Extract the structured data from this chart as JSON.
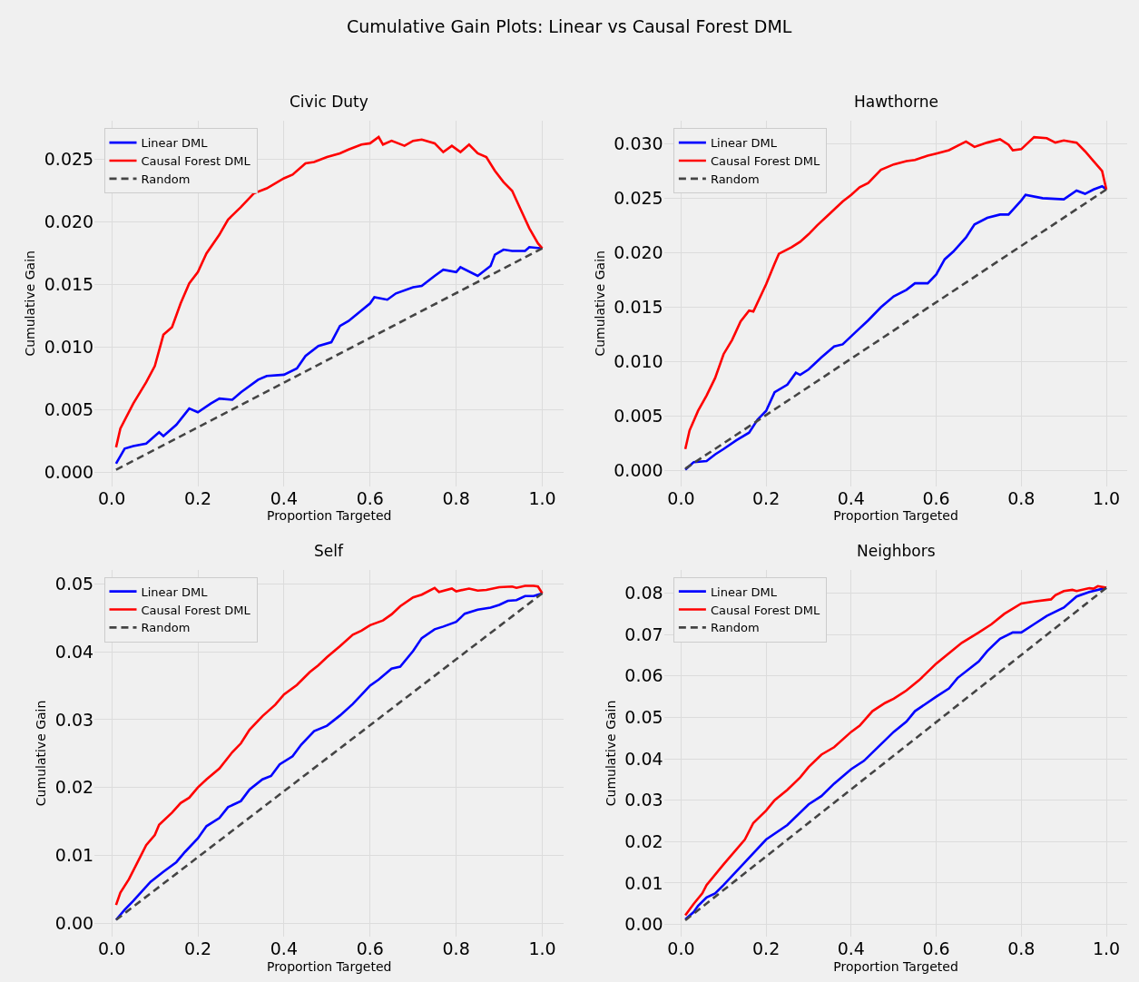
{
  "chart_data": [
    {
      "type": "line",
      "title": "Civic Duty",
      "xlabel": "Proportion Targeted",
      "ylabel": "Cumulative Gain",
      "annotations": [
        "Cumulative Gain Plots: Linear vs Causal Forest DML"
      ],
      "grid": true,
      "legend": "top left",
      "marker": "none",
      "xlim": [
        -0.04,
        1.05
      ],
      "xticks": [
        {
          "value": 0,
          "label": "0.0"
        },
        {
          "value": 0.2,
          "label": "0.2"
        },
        {
          "value": 0.4,
          "label": "0.4"
        },
        {
          "value": 0.6,
          "label": "0.6"
        },
        {
          "value": 0.8,
          "label": "0.8"
        },
        {
          "value": 1,
          "label": "1.0"
        }
      ],
      "ylim": [
        -0.0011,
        0.0281
      ],
      "yticks": [
        {
          "value": 0,
          "label": "0.000"
        },
        {
          "value": 0.005,
          "label": "0.005"
        },
        {
          "value": 0.01,
          "label": "0.010"
        },
        {
          "value": 0.015,
          "label": "0.015"
        },
        {
          "value": 0.02,
          "label": "0.020"
        },
        {
          "value": 0.025,
          "label": "0.025"
        }
      ],
      "series": [
        {
          "name": "Linear DML",
          "color": "#0000ff",
          "line_style": "solid",
          "x": [
            0.01,
            0.03,
            0.05,
            0.08,
            0.11,
            0.12,
            0.15,
            0.18,
            0.2,
            0.23,
            0.25,
            0.28,
            0.3,
            0.34,
            0.36,
            0.4,
            0.43,
            0.45,
            0.48,
            0.51,
            0.53,
            0.55,
            0.6,
            0.61,
            0.64,
            0.66,
            0.7,
            0.72,
            0.75,
            0.77,
            0.8,
            0.81,
            0.85,
            0.88,
            0.89,
            0.91,
            0.93,
            0.96,
            0.97,
            1.0
          ],
          "values": [
            0.0007,
            0.0019,
            0.0021,
            0.0023,
            0.0032,
            0.0029,
            0.0038,
            0.0051,
            0.0048,
            0.0055,
            0.0059,
            0.0058,
            0.0064,
            0.0074,
            0.0077,
            0.0078,
            0.0083,
            0.0093,
            0.0101,
            0.0104,
            0.0117,
            0.0121,
            0.0135,
            0.014,
            0.0138,
            0.0143,
            0.0148,
            0.0149,
            0.0157,
            0.0162,
            0.016,
            0.0164,
            0.0157,
            0.0165,
            0.0174,
            0.0178,
            0.0177,
            0.0177,
            0.018,
            0.0179
          ]
        },
        {
          "name": "Causal Forest DML",
          "color": "#ff0000",
          "line_style": "solid",
          "x": [
            0.01,
            0.02,
            0.05,
            0.08,
            0.1,
            0.12,
            0.14,
            0.16,
            0.18,
            0.2,
            0.22,
            0.25,
            0.27,
            0.3,
            0.33,
            0.36,
            0.4,
            0.42,
            0.45,
            0.47,
            0.5,
            0.53,
            0.55,
            0.58,
            0.6,
            0.62,
            0.63,
            0.65,
            0.68,
            0.7,
            0.72,
            0.75,
            0.77,
            0.79,
            0.81,
            0.83,
            0.85,
            0.87,
            0.89,
            0.91,
            0.93,
            0.95,
            0.97,
            0.99,
            1.0
          ],
          "values": [
            0.002,
            0.0035,
            0.0055,
            0.0072,
            0.0085,
            0.011,
            0.0116,
            0.0135,
            0.0151,
            0.016,
            0.0175,
            0.019,
            0.0202,
            0.0212,
            0.0223,
            0.0227,
            0.0235,
            0.0238,
            0.0247,
            0.0248,
            0.0252,
            0.0255,
            0.0258,
            0.0262,
            0.0263,
            0.0268,
            0.0262,
            0.0265,
            0.0261,
            0.0265,
            0.0266,
            0.0263,
            0.0256,
            0.0261,
            0.0256,
            0.0262,
            0.0255,
            0.0252,
            0.0241,
            0.0232,
            0.0225,
            0.021,
            0.0195,
            0.0183,
            0.0179
          ]
        },
        {
          "name": "Random",
          "color": "#444444",
          "line_style": "dashed",
          "x": [
            0.01,
            1.0
          ],
          "values": [
            0.0002,
            0.0179
          ]
        }
      ]
    },
    {
      "type": "line",
      "title": "Hawthorne",
      "xlabel": "Proportion Targeted",
      "ylabel": "Cumulative Gain",
      "grid": true,
      "legend": "top left",
      "marker": "none",
      "xlim": [
        -0.04,
        1.05
      ],
      "xticks": [
        {
          "value": 0,
          "label": "0.0"
        },
        {
          "value": 0.2,
          "label": "0.2"
        },
        {
          "value": 0.4,
          "label": "0.4"
        },
        {
          "value": 0.6,
          "label": "0.6"
        },
        {
          "value": 0.8,
          "label": "0.8"
        },
        {
          "value": 1,
          "label": "1.0"
        }
      ],
      "ylim": [
        -0.0014,
        0.0321
      ],
      "yticks": [
        {
          "value": 0,
          "label": "0.000"
        },
        {
          "value": 0.005,
          "label": "0.005"
        },
        {
          "value": 0.01,
          "label": "0.010"
        },
        {
          "value": 0.015,
          "label": "0.015"
        },
        {
          "value": 0.02,
          "label": "0.020"
        },
        {
          "value": 0.025,
          "label": "0.025"
        },
        {
          "value": 0.03,
          "label": "0.030"
        }
      ],
      "series": [
        {
          "name": "Linear DML",
          "color": "#0000ff",
          "line_style": "solid",
          "x": [
            0.01,
            0.03,
            0.06,
            0.08,
            0.1,
            0.13,
            0.16,
            0.18,
            0.2,
            0.22,
            0.25,
            0.27,
            0.28,
            0.3,
            0.33,
            0.36,
            0.38,
            0.41,
            0.44,
            0.47,
            0.5,
            0.53,
            0.55,
            0.58,
            0.6,
            0.62,
            0.64,
            0.67,
            0.69,
            0.72,
            0.75,
            0.77,
            0.8,
            0.81,
            0.85,
            0.9,
            0.93,
            0.95,
            0.97,
            0.99,
            1.0
          ],
          "values": [
            0.0001,
            0.0008,
            0.0009,
            0.0015,
            0.002,
            0.0028,
            0.0035,
            0.0047,
            0.0055,
            0.0072,
            0.0079,
            0.009,
            0.0088,
            0.0093,
            0.0104,
            0.0114,
            0.0116,
            0.0127,
            0.0138,
            0.015,
            0.016,
            0.0166,
            0.0172,
            0.0172,
            0.018,
            0.0194,
            0.0201,
            0.0214,
            0.0226,
            0.0232,
            0.0235,
            0.0235,
            0.0248,
            0.0253,
            0.025,
            0.0249,
            0.0257,
            0.0254,
            0.0258,
            0.0261,
            0.0258
          ]
        },
        {
          "name": "Causal Forest DML",
          "color": "#ff0000",
          "line_style": "solid",
          "x": [
            0.01,
            0.02,
            0.04,
            0.06,
            0.08,
            0.1,
            0.12,
            0.14,
            0.16,
            0.17,
            0.2,
            0.22,
            0.23,
            0.26,
            0.28,
            0.3,
            0.32,
            0.35,
            0.38,
            0.4,
            0.42,
            0.44,
            0.47,
            0.5,
            0.53,
            0.55,
            0.58,
            0.6,
            0.63,
            0.67,
            0.69,
            0.72,
            0.75,
            0.77,
            0.78,
            0.8,
            0.83,
            0.86,
            0.88,
            0.9,
            0.93,
            0.95,
            0.97,
            0.99,
            1.0
          ],
          "values": [
            0.002,
            0.0037,
            0.0055,
            0.0069,
            0.0085,
            0.0107,
            0.012,
            0.0137,
            0.0147,
            0.0146,
            0.0171,
            0.019,
            0.0199,
            0.0205,
            0.021,
            0.0217,
            0.0225,
            0.0236,
            0.0247,
            0.0253,
            0.026,
            0.0264,
            0.0276,
            0.0281,
            0.0284,
            0.0285,
            0.0289,
            0.0291,
            0.0294,
            0.0302,
            0.0297,
            0.0301,
            0.0304,
            0.0299,
            0.0294,
            0.0295,
            0.0306,
            0.0305,
            0.0301,
            0.0303,
            0.0301,
            0.0293,
            0.0284,
            0.0275,
            0.0258
          ]
        },
        {
          "name": "Random",
          "color": "#444444",
          "line_style": "dashed",
          "x": [
            0.01,
            1.0
          ],
          "values": [
            0.0002,
            0.0258
          ]
        }
      ]
    },
    {
      "type": "line",
      "title": "Self",
      "xlabel": "Proportion Targeted",
      "ylabel": "Cumulative Gain",
      "grid": true,
      "legend": "top left",
      "marker": "none",
      "xlim": [
        -0.04,
        1.05
      ],
      "xticks": [
        {
          "value": 0,
          "label": "0.0"
        },
        {
          "value": 0.2,
          "label": "0.2"
        },
        {
          "value": 0.4,
          "label": "0.4"
        },
        {
          "value": 0.6,
          "label": "0.6"
        },
        {
          "value": 0.8,
          "label": "0.8"
        },
        {
          "value": 1,
          "label": "1.0"
        }
      ],
      "ylim": [
        -0.002,
        0.0521
      ],
      "yticks": [
        {
          "value": 0,
          "label": "0.00"
        },
        {
          "value": 0.01,
          "label": "0.01"
        },
        {
          "value": 0.02,
          "label": "0.02"
        },
        {
          "value": 0.03,
          "label": "0.03"
        },
        {
          "value": 0.04,
          "label": "0.04"
        },
        {
          "value": 0.05,
          "label": "0.05"
        }
      ],
      "series": [
        {
          "name": "Linear DML",
          "color": "#0000ff",
          "line_style": "solid",
          "x": [
            0.01,
            0.03,
            0.05,
            0.07,
            0.09,
            0.12,
            0.15,
            0.17,
            0.2,
            0.22,
            0.25,
            0.27,
            0.3,
            0.32,
            0.35,
            0.37,
            0.39,
            0.42,
            0.44,
            0.47,
            0.5,
            0.53,
            0.56,
            0.6,
            0.62,
            0.65,
            0.67,
            0.7,
            0.72,
            0.75,
            0.77,
            0.8,
            0.82,
            0.85,
            0.88,
            0.9,
            0.92,
            0.94,
            0.96,
            0.98,
            1.0
          ],
          "values": [
            0.0005,
            0.002,
            0.0033,
            0.0047,
            0.0061,
            0.0076,
            0.009,
            0.0105,
            0.0125,
            0.0143,
            0.0155,
            0.0171,
            0.018,
            0.0197,
            0.0212,
            0.0217,
            0.0234,
            0.0246,
            0.0263,
            0.0283,
            0.0291,
            0.0306,
            0.0323,
            0.035,
            0.0359,
            0.0375,
            0.0378,
            0.0401,
            0.042,
            0.0433,
            0.0437,
            0.0444,
            0.0456,
            0.0462,
            0.0465,
            0.0469,
            0.0475,
            0.0476,
            0.0482,
            0.0482,
            0.0486
          ]
        },
        {
          "name": "Causal Forest DML",
          "color": "#ff0000",
          "line_style": "solid",
          "x": [
            0.01,
            0.02,
            0.04,
            0.06,
            0.08,
            0.1,
            0.11,
            0.14,
            0.16,
            0.18,
            0.2,
            0.22,
            0.25,
            0.28,
            0.3,
            0.32,
            0.35,
            0.38,
            0.4,
            0.43,
            0.46,
            0.48,
            0.5,
            0.53,
            0.56,
            0.58,
            0.6,
            0.63,
            0.65,
            0.67,
            0.7,
            0.72,
            0.75,
            0.76,
            0.79,
            0.8,
            0.83,
            0.85,
            0.87,
            0.9,
            0.93,
            0.94,
            0.96,
            0.98,
            0.99,
            1.0
          ],
          "values": [
            0.0027,
            0.0045,
            0.0065,
            0.009,
            0.0115,
            0.013,
            0.0145,
            0.0163,
            0.0177,
            0.0185,
            0.02,
            0.0212,
            0.0228,
            0.0252,
            0.0265,
            0.0285,
            0.0305,
            0.0322,
            0.0337,
            0.0351,
            0.037,
            0.038,
            0.0392,
            0.0408,
            0.0425,
            0.0431,
            0.0439,
            0.0446,
            0.0455,
            0.0467,
            0.048,
            0.0484,
            0.0494,
            0.0488,
            0.0493,
            0.0489,
            0.0493,
            0.049,
            0.0491,
            0.0495,
            0.0496,
            0.0494,
            0.0497,
            0.0497,
            0.0496,
            0.0486
          ]
        },
        {
          "name": "Random",
          "color": "#444444",
          "line_style": "dashed",
          "x": [
            0.01,
            1.0
          ],
          "values": [
            0.0005,
            0.0486
          ]
        }
      ]
    },
    {
      "type": "line",
      "title": "Neighbors",
      "xlabel": "Proportion Targeted",
      "ylabel": "Cumulative Gain",
      "grid": true,
      "legend": "top left",
      "marker": "none",
      "xlim": [
        -0.04,
        1.05
      ],
      "xticks": [
        {
          "value": 0,
          "label": "0.0"
        },
        {
          "value": 0.2,
          "label": "0.2"
        },
        {
          "value": 0.4,
          "label": "0.4"
        },
        {
          "value": 0.6,
          "label": "0.6"
        },
        {
          "value": 0.8,
          "label": "0.8"
        },
        {
          "value": 1,
          "label": "1.0"
        }
      ],
      "ylim": [
        -0.003,
        0.0857
      ],
      "yticks": [
        {
          "value": 0,
          "label": "0.00"
        },
        {
          "value": 0.01,
          "label": "0.01"
        },
        {
          "value": 0.02,
          "label": "0.02"
        },
        {
          "value": 0.03,
          "label": "0.03"
        },
        {
          "value": 0.04,
          "label": "0.04"
        },
        {
          "value": 0.05,
          "label": "0.05"
        },
        {
          "value": 0.06,
          "label": "0.06"
        },
        {
          "value": 0.07,
          "label": "0.07"
        },
        {
          "value": 0.08,
          "label": "0.08"
        }
      ],
      "series": [
        {
          "name": "Linear DML",
          "color": "#0000ff",
          "line_style": "solid",
          "x": [
            0.01,
            0.03,
            0.04,
            0.06,
            0.08,
            0.1,
            0.15,
            0.2,
            0.25,
            0.3,
            0.33,
            0.36,
            0.4,
            0.43,
            0.46,
            0.5,
            0.53,
            0.55,
            0.6,
            0.63,
            0.65,
            0.7,
            0.72,
            0.75,
            0.78,
            0.8,
            0.83,
            0.86,
            0.9,
            0.93,
            0.96,
            1.0
          ],
          "values": [
            0.0012,
            0.003,
            0.0045,
            0.0065,
            0.0075,
            0.0095,
            0.015,
            0.0205,
            0.024,
            0.029,
            0.031,
            0.034,
            0.0375,
            0.0395,
            0.0425,
            0.0465,
            0.049,
            0.0515,
            0.055,
            0.057,
            0.0595,
            0.0635,
            0.066,
            0.069,
            0.0705,
            0.0705,
            0.0725,
            0.0745,
            0.0765,
            0.0792,
            0.0803,
            0.0813
          ]
        },
        {
          "name": "Causal Forest DML",
          "color": "#ff0000",
          "line_style": "solid",
          "x": [
            0.01,
            0.03,
            0.05,
            0.06,
            0.1,
            0.15,
            0.17,
            0.2,
            0.22,
            0.25,
            0.28,
            0.3,
            0.33,
            0.36,
            0.4,
            0.42,
            0.45,
            0.48,
            0.5,
            0.53,
            0.56,
            0.6,
            0.63,
            0.66,
            0.7,
            0.73,
            0.76,
            0.8,
            0.83,
            0.87,
            0.88,
            0.9,
            0.92,
            0.93,
            0.96,
            0.97,
            0.98,
            1.0
          ],
          "values": [
            0.0022,
            0.005,
            0.0075,
            0.0095,
            0.0145,
            0.0205,
            0.0245,
            0.0275,
            0.03,
            0.0325,
            0.0355,
            0.038,
            0.041,
            0.0428,
            0.0465,
            0.048,
            0.0515,
            0.0535,
            0.0545,
            0.0565,
            0.059,
            0.063,
            0.0655,
            0.068,
            0.0705,
            0.0725,
            0.075,
            0.0775,
            0.078,
            0.0785,
            0.0795,
            0.0805,
            0.0808,
            0.0805,
            0.0812,
            0.0811,
            0.0817,
            0.0813
          ]
        },
        {
          "name": "Random",
          "color": "#444444",
          "line_style": "dashed",
          "x": [
            0.01,
            1.0
          ],
          "values": [
            0.001,
            0.0813
          ]
        }
      ]
    }
  ]
}
